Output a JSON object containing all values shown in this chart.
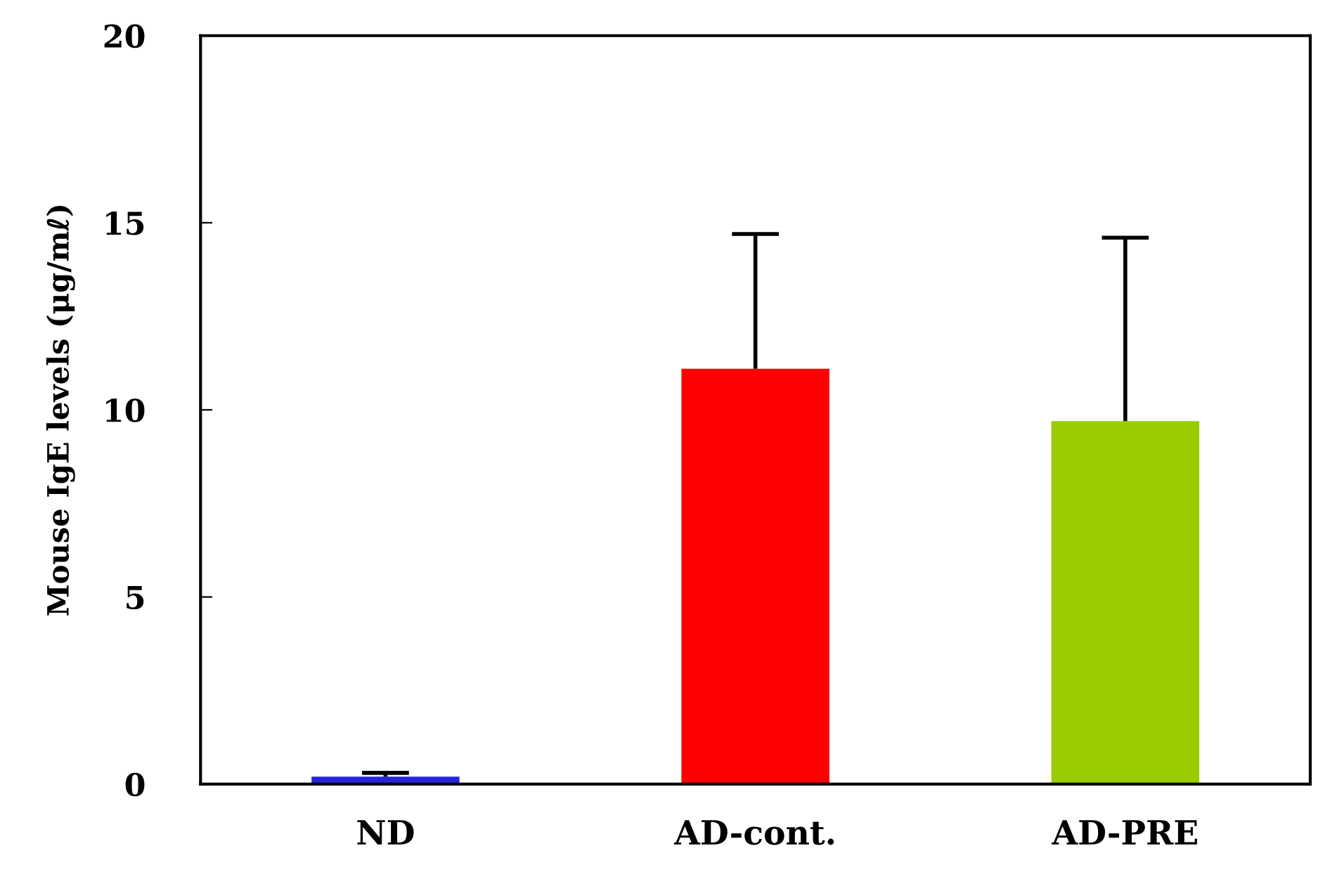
{
  "chart_data": {
    "type": "bar",
    "ylabel": "Mouse IgE levels (μg/mℓ)",
    "categories": [
      "ND",
      "AD-cont.",
      "AD-PRE"
    ],
    "values": [
      0.2,
      11.1,
      9.7
    ],
    "colors": [
      "#2626d9",
      "#ff0000",
      "#99cc00"
    ],
    "errors": [
      [
        0.2,
        0.3
      ],
      [
        11.1,
        14.7
      ],
      [
        9.7,
        14.6
      ]
    ],
    "ylim": [
      0,
      20
    ],
    "yticks": [
      0,
      5,
      10,
      15,
      20
    ],
    "grid": false
  }
}
